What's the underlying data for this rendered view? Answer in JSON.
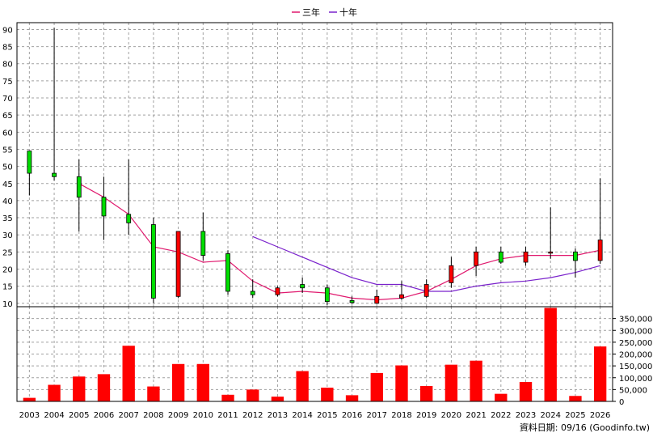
{
  "legend": [
    {
      "label": "三年",
      "color": "#e0196e"
    },
    {
      "label": "十年",
      "color": "#7a22cc"
    }
  ],
  "footer": "資料日期: 09/16  (Goodinfo.tw)",
  "chart_data": [
    {
      "type": "candlestick",
      "ylim": [
        9,
        92
      ],
      "y_ticks": [
        10,
        15,
        20,
        25,
        30,
        35,
        40,
        45,
        50,
        55,
        60,
        65,
        70,
        75,
        80,
        85,
        90
      ],
      "categories": [
        "2003",
        "2004",
        "2005",
        "2006",
        "2007",
        "2008",
        "2009",
        "2010",
        "2011",
        "2012",
        "2013",
        "2014",
        "2015",
        "2016",
        "2017",
        "2018",
        "2019",
        "2020",
        "2021",
        "2022",
        "2023",
        "2024",
        "2025",
        "2026"
      ],
      "up_color": "#ff0000",
      "down_color": "#00dd00",
      "candles": [
        {
          "open": 54.5,
          "close": 48.0,
          "high": 54.5,
          "low": 41.5
        },
        {
          "open": 48.0,
          "close": 47.0,
          "high": 90.5,
          "low": 45.8
        },
        {
          "open": 47.0,
          "close": 41.0,
          "high": 52.0,
          "low": 31.0
        },
        {
          "open": 41.0,
          "close": 35.5,
          "high": 47.0,
          "low": 28.5
        },
        {
          "open": 36.0,
          "close": 33.5,
          "high": 52.0,
          "low": 30.0
        },
        {
          "open": 33.0,
          "close": 11.5,
          "high": 35.0,
          "low": 10.0
        },
        {
          "open": 12.0,
          "close": 31.0,
          "high": 31.0,
          "low": 11.5
        },
        {
          "open": 31.0,
          "close": 24.0,
          "high": 36.5,
          "low": 22.5
        },
        {
          "open": 24.5,
          "close": 13.5,
          "high": 25.5,
          "low": 12.5
        },
        {
          "open": 13.5,
          "close": 12.5,
          "high": 17.0,
          "low": 11.5
        },
        {
          "open": 12.5,
          "close": 14.5,
          "high": 15.0,
          "low": 12.0
        },
        {
          "open": 15.5,
          "close": 14.5,
          "high": 17.5,
          "low": 13.0
        },
        {
          "open": 14.5,
          "close": 10.5,
          "high": 15.5,
          "low": 9.5
        },
        {
          "open": 10.8,
          "close": 10.2,
          "high": 12.0,
          "low": 9.8
        },
        {
          "open": 10.0,
          "close": 12.0,
          "high": 14.0,
          "low": 9.8
        },
        {
          "open": 11.5,
          "close": 12.5,
          "high": 16.5,
          "low": 11.0
        },
        {
          "open": 12.0,
          "close": 15.5,
          "high": 17.0,
          "low": 11.5
        },
        {
          "open": 16.0,
          "close": 21.0,
          "high": 23.5,
          "low": 14.5
        },
        {
          "open": 21.0,
          "close": 25.0,
          "high": 26.5,
          "low": 18.0
        },
        {
          "open": 25.0,
          "close": 22.0,
          "high": 26.5,
          "low": 21.5
        },
        {
          "open": 22.0,
          "close": 25.0,
          "high": 26.5,
          "low": 21.0
        },
        {
          "open": 25.0,
          "close": 25.0,
          "high": 38.0,
          "low": 23.0
        },
        {
          "open": 25.0,
          "close": 22.5,
          "high": 26.0,
          "low": 17.5
        },
        {
          "open": 22.5,
          "close": 28.5,
          "high": 46.5,
          "low": 21.5
        }
      ],
      "lines": [
        {
          "name": "三年",
          "color": "#e0196e",
          "values": [
            null,
            null,
            45.0,
            41.0,
            36.0,
            26.5,
            25.0,
            22.0,
            22.5,
            16.5,
            13.0,
            13.5,
            13.0,
            11.5,
            11.0,
            11.5,
            13.5,
            17.0,
            21.0,
            23.0,
            24.0,
            24.0,
            24.0,
            25.5
          ]
        },
        {
          "name": "十年",
          "color": "#7a22cc",
          "values": [
            null,
            null,
            null,
            null,
            null,
            null,
            null,
            null,
            null,
            29.5,
            26.5,
            23.5,
            20.5,
            17.5,
            15.5,
            15.5,
            13.5,
            13.5,
            15.0,
            16.0,
            16.5,
            17.5,
            19.0,
            21.0
          ]
        }
      ]
    },
    {
      "type": "bar",
      "categories": [
        "2003",
        "2004",
        "2005",
        "2006",
        "2007",
        "2008",
        "2009",
        "2010",
        "2011",
        "2012",
        "2013",
        "2014",
        "2015",
        "2016",
        "2017",
        "2018",
        "2019",
        "2020",
        "2021",
        "2022",
        "2023",
        "2024",
        "2025",
        "2026"
      ],
      "values": [
        15000,
        70000,
        105000,
        115000,
        235000,
        63000,
        158000,
        158000,
        28000,
        50000,
        20000,
        128000,
        58000,
        26000,
        120000,
        152000,
        65000,
        155000,
        172000,
        32000,
        82000,
        395000,
        23000,
        232000
      ],
      "ylim": [
        0,
        400000
      ],
      "y_tick_labels": [
        "0",
        "50,000",
        "100,000",
        "150,000",
        "200,000",
        "250,000",
        "300,000",
        "350,000"
      ],
      "bar_color": "#ff0000"
    }
  ]
}
